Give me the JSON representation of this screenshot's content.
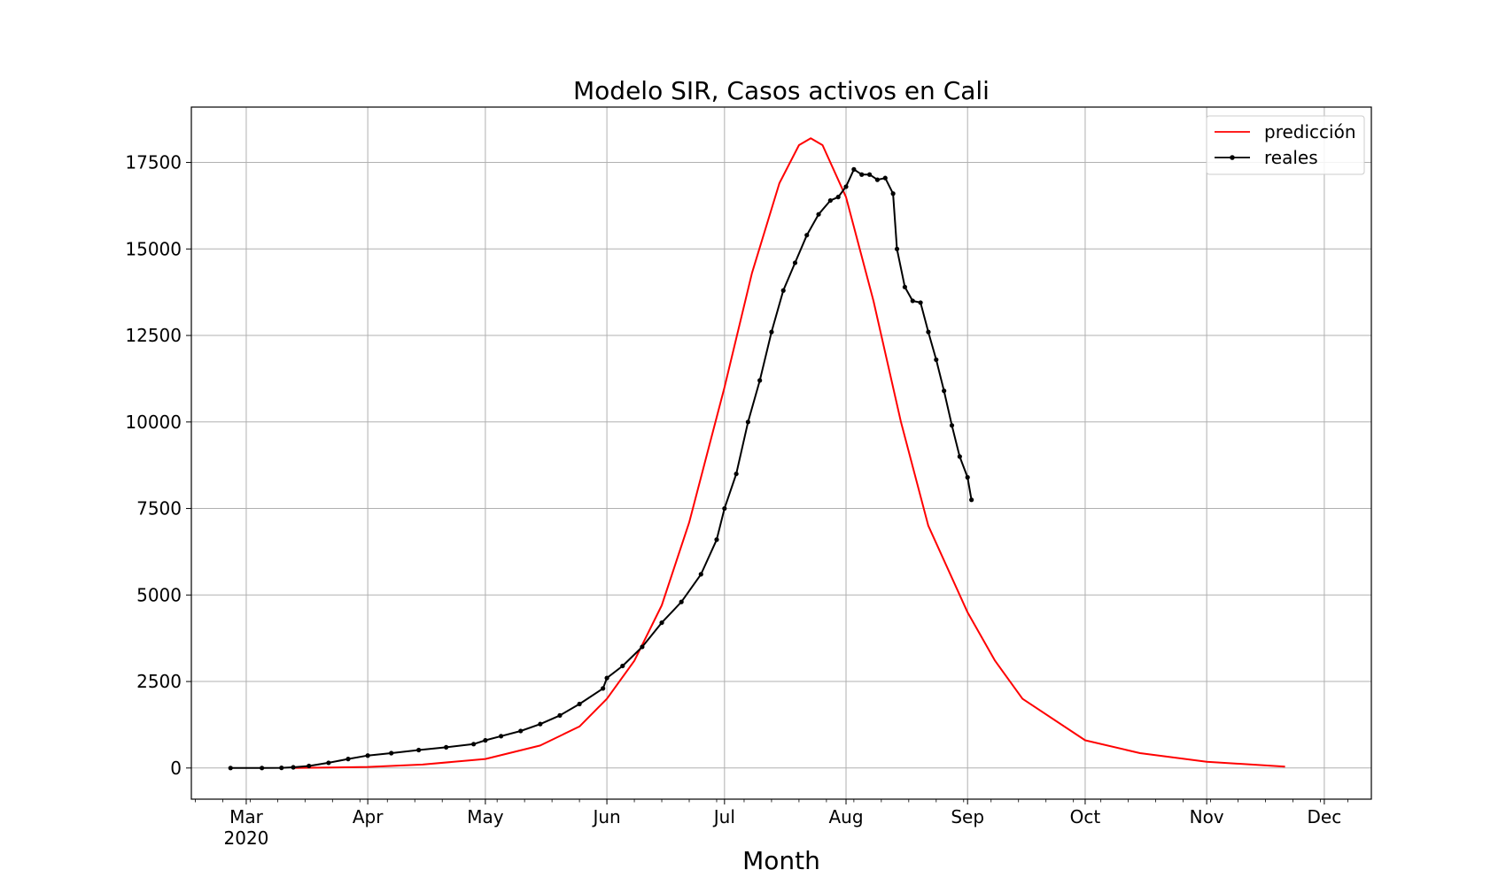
{
  "chart_data": {
    "type": "line",
    "title": "Modelo SIR, Casos activos en Cali",
    "xlabel": "Month",
    "ylabel": "",
    "x_axis": "date",
    "xlim": [
      "2020-02-16",
      "2020-12-13"
    ],
    "ylim": [
      -900,
      19100
    ],
    "grid": true,
    "legend_position": "top-right",
    "x_ticks": [
      {
        "date": "2020-03-01",
        "label": "Mar",
        "sublabel": "2020"
      },
      {
        "date": "2020-04-01",
        "label": "Apr"
      },
      {
        "date": "2020-05-01",
        "label": "May"
      },
      {
        "date": "2020-06-01",
        "label": "Jun"
      },
      {
        "date": "2020-07-01",
        "label": "Jul"
      },
      {
        "date": "2020-08-01",
        "label": "Aug"
      },
      {
        "date": "2020-09-01",
        "label": "Sep"
      },
      {
        "date": "2020-10-01",
        "label": "Oct"
      },
      {
        "date": "2020-11-01",
        "label": "Nov"
      },
      {
        "date": "2020-12-01",
        "label": "Dec"
      }
    ],
    "y_ticks": [
      {
        "value": 0,
        "label": "0"
      },
      {
        "value": 2500,
        "label": "2500"
      },
      {
        "value": 5000,
        "label": "5000"
      },
      {
        "value": 7500,
        "label": "7500"
      },
      {
        "value": 10000,
        "label": "10000"
      },
      {
        "value": 12500,
        "label": "12500"
      },
      {
        "value": 15000,
        "label": "15000"
      },
      {
        "value": 17500,
        "label": "17500"
      }
    ],
    "series": [
      {
        "name": "predicción",
        "color": "#ff0000",
        "marker": "none",
        "points": [
          [
            "2020-03-13",
            0
          ],
          [
            "2020-04-01",
            30
          ],
          [
            "2020-04-15",
            100
          ],
          [
            "2020-05-01",
            260
          ],
          [
            "2020-05-15",
            650
          ],
          [
            "2020-05-25",
            1200
          ],
          [
            "2020-06-01",
            2000
          ],
          [
            "2020-06-08",
            3100
          ],
          [
            "2020-06-15",
            4700
          ],
          [
            "2020-06-22",
            7100
          ],
          [
            "2020-07-01",
            11000
          ],
          [
            "2020-07-08",
            14300
          ],
          [
            "2020-07-15",
            16900
          ],
          [
            "2020-07-20",
            18000
          ],
          [
            "2020-07-23",
            18200
          ],
          [
            "2020-07-26",
            18000
          ],
          [
            "2020-08-01",
            16500
          ],
          [
            "2020-08-08",
            13500
          ],
          [
            "2020-08-15",
            10000
          ],
          [
            "2020-08-22",
            7000
          ],
          [
            "2020-09-01",
            4500
          ],
          [
            "2020-09-08",
            3100
          ],
          [
            "2020-09-15",
            2000
          ],
          [
            "2020-10-01",
            800
          ],
          [
            "2020-10-15",
            430
          ],
          [
            "2020-11-01",
            180
          ],
          [
            "2020-11-21",
            40
          ]
        ]
      },
      {
        "name": "reales",
        "color": "#000000",
        "marker": "dot",
        "points": [
          [
            "2020-02-26",
            0
          ],
          [
            "2020-03-05",
            0
          ],
          [
            "2020-03-10",
            5
          ],
          [
            "2020-03-13",
            20
          ],
          [
            "2020-03-17",
            60
          ],
          [
            "2020-03-22",
            150
          ],
          [
            "2020-03-27",
            260
          ],
          [
            "2020-04-01",
            360
          ],
          [
            "2020-04-07",
            430
          ],
          [
            "2020-04-14",
            520
          ],
          [
            "2020-04-21",
            600
          ],
          [
            "2020-04-28",
            690
          ],
          [
            "2020-05-01",
            800
          ],
          [
            "2020-05-05",
            920
          ],
          [
            "2020-05-10",
            1070
          ],
          [
            "2020-05-15",
            1270
          ],
          [
            "2020-05-20",
            1520
          ],
          [
            "2020-05-25",
            1850
          ],
          [
            "2020-05-31",
            2300
          ],
          [
            "2020-06-01",
            2600
          ],
          [
            "2020-06-05",
            2950
          ],
          [
            "2020-06-10",
            3500
          ],
          [
            "2020-06-15",
            4200
          ],
          [
            "2020-06-20",
            4800
          ],
          [
            "2020-06-25",
            5600
          ],
          [
            "2020-06-29",
            6600
          ],
          [
            "2020-07-01",
            7500
          ],
          [
            "2020-07-04",
            8500
          ],
          [
            "2020-07-07",
            10000
          ],
          [
            "2020-07-10",
            11200
          ],
          [
            "2020-07-13",
            12600
          ],
          [
            "2020-07-16",
            13800
          ],
          [
            "2020-07-19",
            14600
          ],
          [
            "2020-07-22",
            15400
          ],
          [
            "2020-07-25",
            16000
          ],
          [
            "2020-07-28",
            16400
          ],
          [
            "2020-07-30",
            16500
          ],
          [
            "2020-08-01",
            16800
          ],
          [
            "2020-08-03",
            17300
          ],
          [
            "2020-08-05",
            17150
          ],
          [
            "2020-08-07",
            17150
          ],
          [
            "2020-08-09",
            17000
          ],
          [
            "2020-08-11",
            17050
          ],
          [
            "2020-08-13",
            16600
          ],
          [
            "2020-08-14",
            15000
          ],
          [
            "2020-08-16",
            13900
          ],
          [
            "2020-08-18",
            13500
          ],
          [
            "2020-08-20",
            13450
          ],
          [
            "2020-08-22",
            12600
          ],
          [
            "2020-08-24",
            11800
          ],
          [
            "2020-08-26",
            10900
          ],
          [
            "2020-08-28",
            9900
          ],
          [
            "2020-08-30",
            9000
          ],
          [
            "2020-09-01",
            8400
          ],
          [
            "2020-09-02",
            7750
          ]
        ]
      }
    ]
  }
}
